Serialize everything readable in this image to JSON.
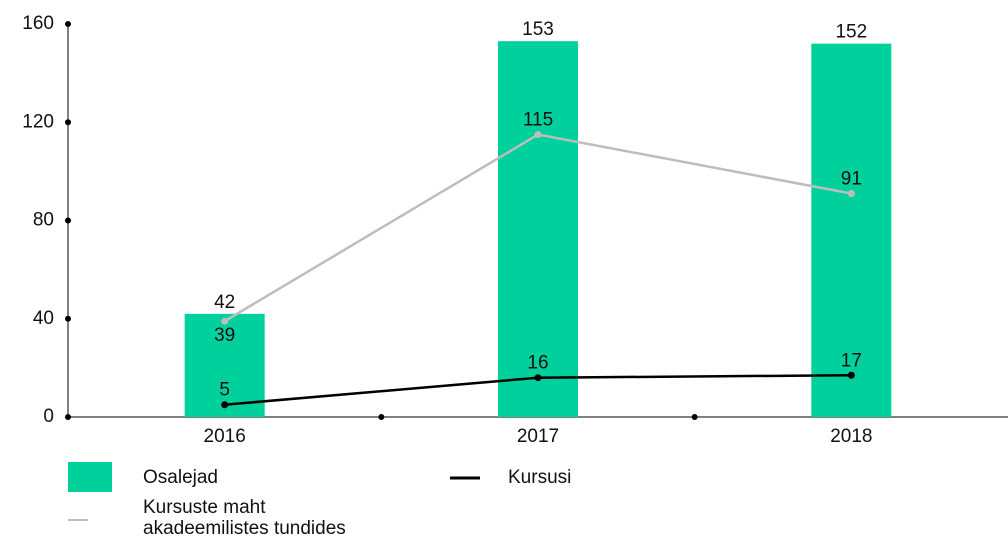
{
  "chart_data": {
    "type": "bar",
    "categories": [
      "2016",
      "2017",
      "2018"
    ],
    "series": [
      {
        "name": "Osalejad",
        "type": "bar",
        "color": "#00d09c",
        "values": [
          42,
          153,
          152
        ]
      },
      {
        "name": "Kursusi",
        "type": "line",
        "color": "#000000",
        "values": [
          5,
          16,
          17
        ]
      },
      {
        "name": "Kursuste maht akadeemilistes tundides",
        "type": "line",
        "color": "#bdbdbd",
        "values": [
          39,
          115,
          91
        ]
      }
    ],
    "ylim": [
      0,
      160
    ],
    "yticks": [
      0,
      40,
      80,
      120,
      160
    ],
    "grid": false
  }
}
